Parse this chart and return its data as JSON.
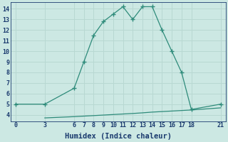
{
  "line1_x": [
    0,
    3,
    6,
    7,
    8,
    9,
    10,
    11,
    12,
    13,
    14,
    15,
    16,
    17,
    18,
    21
  ],
  "line1_y": [
    5,
    5,
    6.5,
    9,
    11.5,
    12.8,
    13.5,
    14.2,
    13,
    14.2,
    14.2,
    12,
    10,
    8,
    4.5,
    5
  ],
  "line2_x": [
    3,
    6,
    7,
    8,
    9,
    10,
    11,
    12,
    13,
    14,
    15,
    16,
    17,
    18,
    21
  ],
  "line2_y": [
    3.7,
    3.82,
    3.87,
    3.92,
    3.97,
    4.02,
    4.07,
    4.12,
    4.18,
    4.25,
    4.3,
    4.35,
    4.4,
    4.45,
    4.65
  ],
  "line_color": "#2e8b7a",
  "bg_color": "#cce8e3",
  "grid_color_major": "#b8d8d2",
  "grid_color_minor": "#d4eceb",
  "xlabel": "Humidex (Indice chaleur)",
  "xticks": [
    0,
    3,
    6,
    7,
    8,
    9,
    10,
    11,
    12,
    13,
    14,
    15,
    16,
    17,
    18,
    21
  ],
  "yticks": [
    4,
    5,
    6,
    7,
    8,
    9,
    10,
    11,
    12,
    13,
    14
  ],
  "xlim": [
    -0.5,
    21.5
  ],
  "ylim": [
    3.4,
    14.6
  ],
  "tick_color": "#1a3a6e",
  "xlabel_size": 7.5
}
